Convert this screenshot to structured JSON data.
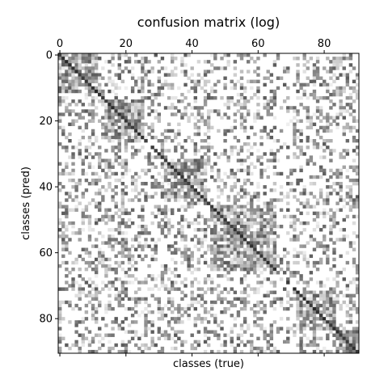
{
  "chart_data": {
    "type": "heatmap",
    "title": "confusion matrix (log)",
    "xlabel": "classes (true)",
    "ylabel": "classes (pred)",
    "n_classes": 91,
    "colormap": "Greys",
    "scale": "log",
    "x_ticks": [
      0,
      20,
      40,
      60,
      80
    ],
    "y_ticks": [
      0,
      20,
      40,
      60,
      80
    ],
    "x_tick_position": "top",
    "grid": false,
    "class_groups": [
      {
        "start": 0,
        "end": 11
      },
      {
        "start": 14,
        "end": 25
      },
      {
        "start": 32,
        "end": 44
      },
      {
        "start": 46,
        "end": 66
      },
      {
        "start": 72,
        "end": 83
      },
      {
        "start": 84,
        "end": 90
      }
    ],
    "empty_classes": [
      27,
      66,
      67,
      68,
      70
    ]
  },
  "colors": {
    "background": "#ffffff",
    "diagonal": "#2b2b2b",
    "text": "#000000"
  }
}
